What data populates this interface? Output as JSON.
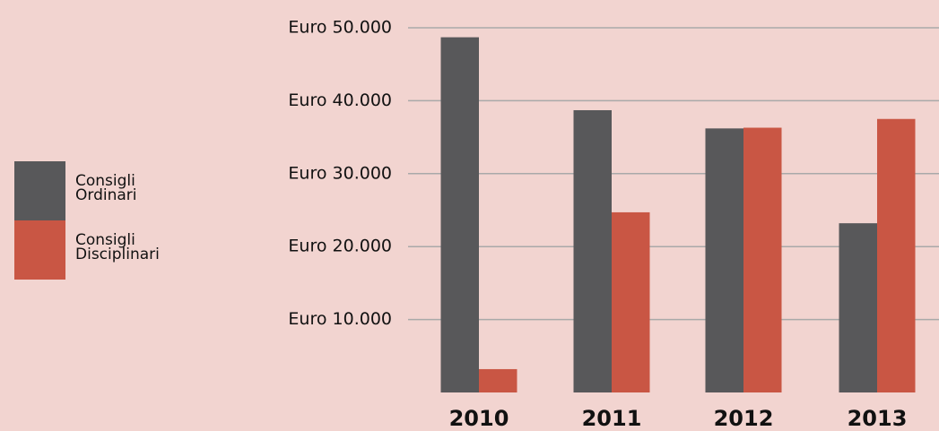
{
  "chart_data": {
    "type": "bar",
    "categories": [
      "2010",
      "2011",
      "2012",
      "2013"
    ],
    "series": [
      {
        "name": "Consigli Ordinari",
        "color": "#58585a",
        "values": [
          48700,
          38700,
          36200,
          23200
        ]
      },
      {
        "name": "Consigli Disciplinari",
        "color": "#c95644",
        "values": [
          3200,
          24700,
          36300,
          37500
        ]
      }
    ],
    "ylim": [
      0,
      50000
    ],
    "yticks": [
      {
        "value": 10000,
        "label": "Euro 10.000"
      },
      {
        "value": 20000,
        "label": "Euro 20.000"
      },
      {
        "value": 30000,
        "label": "Euro 30.000"
      },
      {
        "value": 40000,
        "label": "Euro 40.000"
      },
      {
        "value": 50000,
        "label": "Euro 50.000"
      }
    ],
    "grid": true,
    "legend": "left"
  }
}
